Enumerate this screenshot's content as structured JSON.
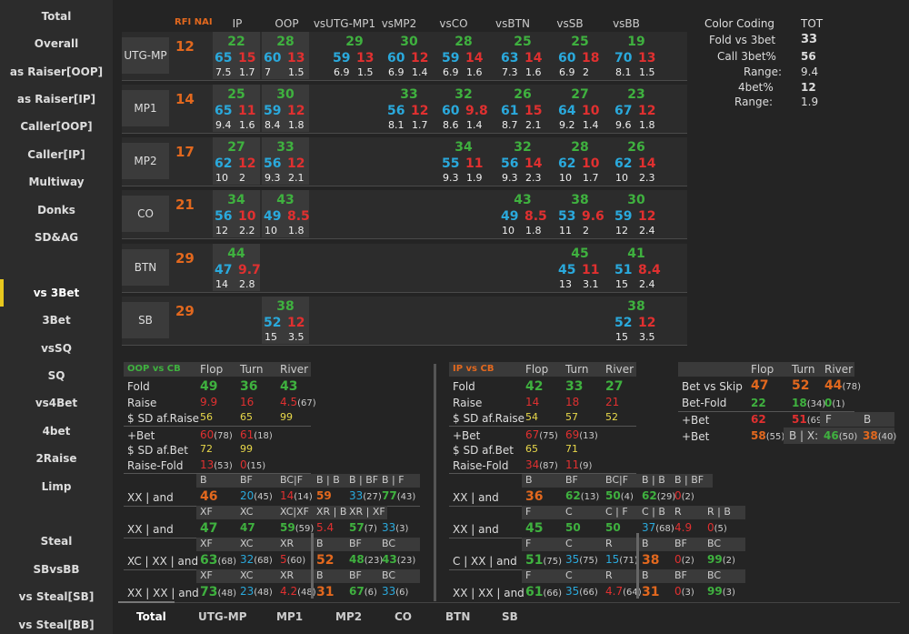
{
  "sidebar": {
    "items": [
      "Total",
      "Overall",
      "as Raiser[OOP]",
      "as Raiser[IP]",
      "Caller[OOP]",
      "Caller[IP]",
      "Multiway",
      "Donks",
      "SD&AG",
      "vs 3Bet",
      "3Bet",
      "vsSQ",
      "SQ",
      "vs4Bet",
      "4bet",
      "2Raise",
      "Limp",
      "Steal",
      "SBvsBB",
      "vs Steal[SB]",
      "vs Steal[BB]"
    ],
    "active": "vs 3Bet"
  },
  "header": {
    "rfi": "RFI NAI",
    "ip": "IP",
    "oop": "OOP",
    "cols": [
      "vsUTG-MP1",
      "vsMP2",
      "vsCO",
      "vsBTN",
      "vsSB",
      "vsBB"
    ]
  },
  "rows": [
    {
      "pos": "UTG-MP",
      "rfi": "12",
      "ip": [
        "22",
        "65",
        "15",
        "7.5",
        "1.7"
      ],
      "oop": [
        "28",
        "60",
        "13",
        "7",
        "1.5"
      ],
      "cells": [
        [
          "29",
          "59",
          "13",
          "6.9",
          "1.5"
        ],
        [
          "30",
          "60",
          "12",
          "6.9",
          "1.4"
        ],
        [
          "28",
          "59",
          "14",
          "6.9",
          "1.6"
        ],
        [
          "25",
          "63",
          "14",
          "7.3",
          "1.6"
        ],
        [
          "25",
          "60",
          "18",
          "6.9",
          "2"
        ],
        [
          "19",
          "70",
          "13",
          "8.1",
          "1.5"
        ]
      ]
    },
    {
      "pos": "MP1",
      "rfi": "14",
      "ip": [
        "25",
        "65",
        "11",
        "9.4",
        "1.6"
      ],
      "oop": [
        "30",
        "59",
        "12",
        "8.4",
        "1.8"
      ],
      "cells": [
        null,
        [
          "33",
          "56",
          "12",
          "8.1",
          "1.7"
        ],
        [
          "32",
          "60",
          "9.8",
          "8.6",
          "1.4"
        ],
        [
          "26",
          "61",
          "15",
          "8.7",
          "2.1"
        ],
        [
          "27",
          "64",
          "10",
          "9.2",
          "1.4"
        ],
        [
          "23",
          "67",
          "12",
          "9.6",
          "1.8"
        ]
      ]
    },
    {
      "pos": "MP2",
      "rfi": "17",
      "ip": [
        "27",
        "62",
        "12",
        "10",
        "2"
      ],
      "oop": [
        "33",
        "56",
        "12",
        "9.3",
        "2.1"
      ],
      "cells": [
        null,
        null,
        [
          "34",
          "55",
          "11",
          "9.3",
          "1.9"
        ],
        [
          "32",
          "56",
          "14",
          "9.3",
          "2.3"
        ],
        [
          "28",
          "62",
          "10",
          "10",
          "1.7"
        ],
        [
          "26",
          "62",
          "14",
          "10",
          "2.3"
        ]
      ]
    },
    {
      "pos": "CO",
      "rfi": "21",
      "ip": [
        "34",
        "56",
        "10",
        "12",
        "2.2"
      ],
      "oop": [
        "43",
        "49",
        "8.5",
        "10",
        "1.8"
      ],
      "cells": [
        null,
        null,
        null,
        [
          "43",
          "49",
          "8.5",
          "10",
          "1.8"
        ],
        [
          "38",
          "53",
          "9.6",
          "11",
          "2"
        ],
        [
          "30",
          "59",
          "12",
          "12",
          "2.4"
        ]
      ]
    },
    {
      "pos": "BTN",
      "rfi": "29",
      "ip": [
        "44",
        "47",
        "9.7",
        "14",
        "2.8"
      ],
      "oop": null,
      "cells": [
        null,
        null,
        null,
        null,
        [
          "45",
          "45",
          "11",
          "13",
          "3.1"
        ],
        [
          "41",
          "51",
          "8.4",
          "15",
          "2.4"
        ]
      ]
    },
    {
      "pos": "SB",
      "rfi": "29",
      "ip": null,
      "oop": [
        "38",
        "52",
        "12",
        "15",
        "3.5"
      ],
      "cells": [
        null,
        null,
        null,
        null,
        null,
        [
          "38",
          "52",
          "12",
          "15",
          "3.5"
        ]
      ]
    }
  ],
  "colorcoding": {
    "title": "Color Coding",
    "tot": "TOT",
    "fold_lbl": "Fold vs 3bet",
    "fold": "33",
    "call_lbl": "Call 3bet%",
    "call": "56",
    "range_lbl": "Range:",
    "range1": "9.4",
    "fourbet_lbl": "4bet%",
    "fourbet": "12",
    "range2": "1.9"
  },
  "oop_cb": {
    "title": "OOP vs CB",
    "cols": [
      "Flop",
      "Turn",
      "River"
    ],
    "fold": [
      "49",
      "36",
      "43"
    ],
    "raise": [
      "9.9",
      "16",
      "4.5(67)"
    ],
    "sdafraise": [
      "56",
      "65",
      "99"
    ],
    "bet": [
      "60(78)",
      "61(18)"
    ],
    "sdafbet": [
      "72",
      "99"
    ],
    "raisefold": [
      "13(53)",
      "0(15)"
    ],
    "lbl": {
      "fold": "Fold",
      "raise": "Raise",
      "sdafraise": "$ SD af.Raise",
      "bet": "+Bet",
      "sdafbet": "$ SD af.Bet",
      "raisefold": "Raise-Fold"
    },
    "lines": [
      {
        "lbl": "XX | and",
        "h": [
          "B",
          "BF",
          "BC|F",
          "B | B",
          "B | BF",
          "B | F"
        ],
        "v": [
          "46",
          "20(45)",
          "14(14)",
          "59",
          "33(27)",
          "77(43)"
        ]
      },
      {
        "lbl": "XX | and",
        "h": [
          "XF",
          "XC",
          "XC|XF",
          "XR | B",
          "XR | XF"
        ],
        "v": [
          "47",
          "47",
          "59(59)",
          "5.4",
          "57(7)",
          "33(3)"
        ]
      },
      {
        "lbl": "XC | XX | and",
        "h": [
          "XF",
          "XC",
          "XR",
          "B",
          "BF",
          "BC"
        ],
        "v": [
          "63(68)",
          "32(68)",
          "5(60)",
          "52",
          "48(23)",
          "43(23)"
        ]
      },
      {
        "lbl": "XX | XX | and",
        "h": [
          "XF",
          "XC",
          "XR",
          "B",
          "BF",
          "BC"
        ],
        "v": [
          "73(48)",
          "23(48)",
          "4.2(48)",
          "31",
          "67(6)",
          "33(6)"
        ]
      }
    ]
  },
  "ip_cb": {
    "title": "IP vs CB",
    "cols": [
      "Flop",
      "Turn",
      "River"
    ],
    "fold": [
      "42",
      "33",
      "27"
    ],
    "raise": [
      "14",
      "18",
      "21"
    ],
    "sdafraise": [
      "54",
      "57",
      "52"
    ],
    "bet": [
      "67(75)",
      "69(13)"
    ],
    "sdafbet": [
      "65",
      "71"
    ],
    "raisefold": [
      "34(87)",
      "11(9)"
    ],
    "lines": [
      {
        "lbl": "XX | and",
        "h": [
          "B",
          "BF",
          "BC|F",
          "B | B",
          "B | BF"
        ],
        "v": [
          "36",
          "62(13)",
          "50(4)",
          "62(29)",
          "0(2)"
        ]
      },
      {
        "lbl": "XX | and",
        "h": [
          "F",
          "C",
          "C | F",
          "C | B",
          "R",
          "R | B"
        ],
        "v": [
          "45",
          "50",
          "50",
          "37(68)",
          "4.9",
          "0(5)"
        ]
      },
      {
        "lbl": "C | XX | and",
        "h": [
          "F",
          "C",
          "R",
          "B",
          "BF",
          "BC"
        ],
        "v": [
          "51(75)",
          "35(75)",
          "15(71)",
          "38",
          "0(2)",
          "99(2)"
        ]
      },
      {
        "lbl": "XX | XX | and",
        "h": [
          "F",
          "C",
          "R",
          "B",
          "BF",
          "BC"
        ],
        "v": [
          "61(66)",
          "35(66)",
          "4.7(64)",
          "31",
          "0(3)",
          "99(3)"
        ]
      }
    ]
  },
  "betskip": {
    "cols": [
      "Flop",
      "Turn",
      "River"
    ],
    "bvs_lbl": "Bet vs Skip",
    "bvs": [
      "47",
      "52",
      "44(78)"
    ],
    "bf_lbl": "Bet-Fold",
    "bf": [
      "22",
      "18(34)",
      "0(1)"
    ],
    "pbet_lbl": "+Bet",
    "pbet": [
      "62",
      "51(69)"
    ],
    "f": "F",
    "b": "B",
    "pbet2_lbl": "+Bet",
    "pbet2": [
      "58(55)"
    ],
    "bx": "B | X:",
    "bx1": "46(50)",
    "bx2": "38(40)"
  },
  "bottomtabs": [
    "Total",
    "UTG-MP",
    "MP1",
    "MP2",
    "CO",
    "BTN",
    "SB"
  ],
  "colors": {
    "green": "#3fb13f",
    "orange": "#e2681e",
    "blue": "#2aa9dc",
    "red": "#e03030",
    "yellow": "#e8c81e"
  }
}
